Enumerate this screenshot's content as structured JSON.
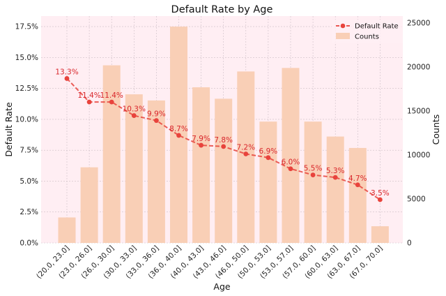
{
  "chart_data": {
    "type": "bar+line",
    "title": "Default Rate by Age",
    "xlabel": "Age",
    "ylabel": "Default Rate",
    "y2label": "Counts",
    "categories": [
      "(20.0, 23.0]",
      "(23.0, 26.0]",
      "(26.0, 30.0]",
      "(30.0, 33.0]",
      "(33.0, 36.0]",
      "(36.0, 40.0]",
      "(40.0, 43.0]",
      "(43.0, 46.0]",
      "(46.0, 50.0]",
      "(50.0, 53.0]",
      "(53.0, 57.0]",
      "(57.0, 60.0]",
      "(60.0, 63.0]",
      "(63.0, 67.0]",
      "(67.0, 70.0]"
    ],
    "series": [
      {
        "name": "Default Rate",
        "kind": "line",
        "axis": "left",
        "values": [
          0.133,
          0.114,
          0.114,
          0.103,
          0.099,
          0.087,
          0.079,
          0.078,
          0.072,
          0.069,
          0.06,
          0.055,
          0.053,
          0.047,
          0.035
        ],
        "labels": [
          "13.3%",
          "11.4%",
          "11.4%",
          "10.3%",
          "9.9%",
          "8.7%",
          "7.9%",
          "7.8%",
          "7.2%",
          "6.9%",
          "6.0%",
          "5.5%",
          "5.3%",
          "4.7%",
          "3.5%"
        ],
        "color": "#e8433c"
      },
      {
        "name": "Counts",
        "kind": "bar",
        "axis": "right",
        "values": [
          2900,
          8600,
          20200,
          16900,
          16200,
          24600,
          17700,
          16400,
          19500,
          13800,
          19900,
          13800,
          12100,
          10800,
          1900
        ],
        "color": "#f9cfb6"
      }
    ],
    "ylim": [
      0,
      0.1835
    ],
    "yticks": [
      0,
      0.025,
      0.05,
      0.075,
      0.1,
      0.125,
      0.15,
      0.175
    ],
    "ytick_labels": [
      "0.0%",
      "2.5%",
      "5.0%",
      "7.5%",
      "10.0%",
      "12.5%",
      "15.0%",
      "17.5%"
    ],
    "y2lim": [
      0,
      25800
    ],
    "y2ticks": [
      0,
      5000,
      10000,
      15000,
      20000,
      25000
    ],
    "y2tick_labels": [
      "0",
      "5000",
      "10000",
      "15000",
      "20000",
      "25000"
    ],
    "grid": true,
    "legend_position": "top-right",
    "plot_background": "#ffeef3"
  }
}
